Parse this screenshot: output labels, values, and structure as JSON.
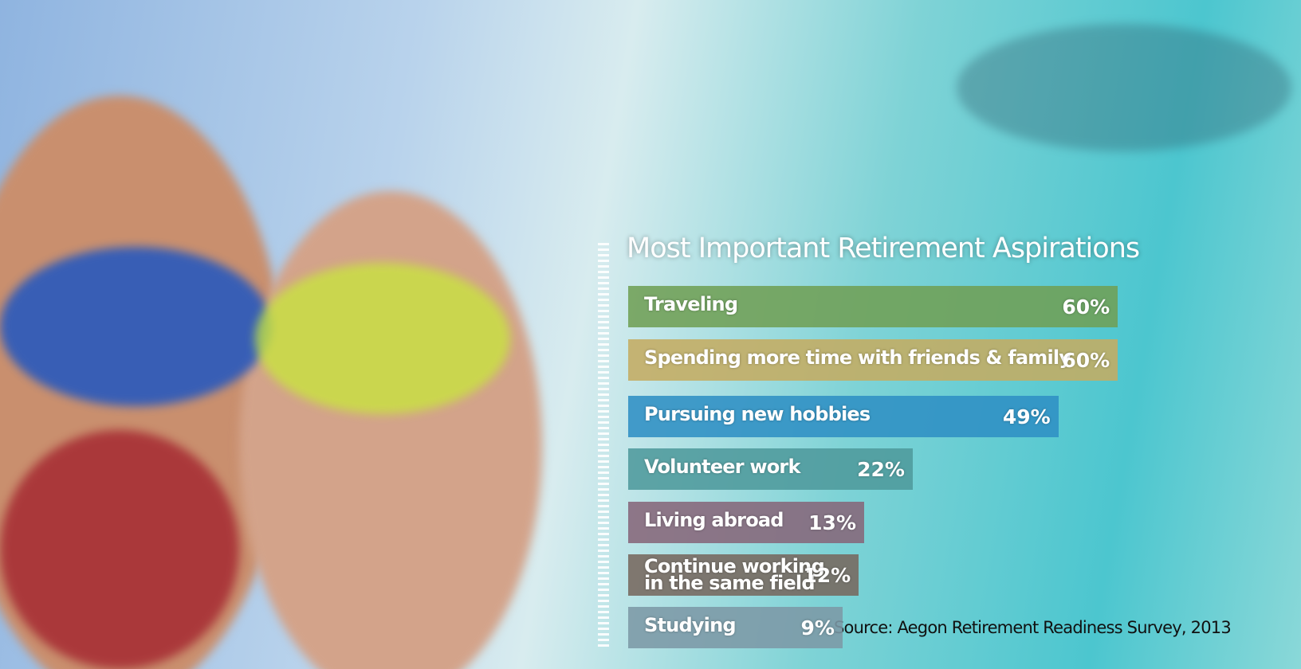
{
  "chart_data": {
    "type": "bar",
    "orientation": "horizontal",
    "title": "Most Important Retirement Aspirations",
    "categories": [
      "Traveling",
      "Spending more time with friends & family",
      "Pursuing new hobbies",
      "Volunteer work",
      "Living abroad",
      "Continue working\nin the same field",
      "Studying"
    ],
    "values": [
      60,
      60,
      49,
      22,
      13,
      12,
      9
    ],
    "value_labels": [
      "60%",
      "60%",
      "49%",
      "22%",
      "13%",
      "12%",
      "9%"
    ],
    "colors": [
      "#6f9f55",
      "#c4ac62",
      "#2f8fc4",
      "#4f9a9c",
      "#86667a",
      "#76685e",
      "#7c98a6"
    ],
    "source": "Source: Aegon Retirement Readiness Survey, 2013"
  }
}
